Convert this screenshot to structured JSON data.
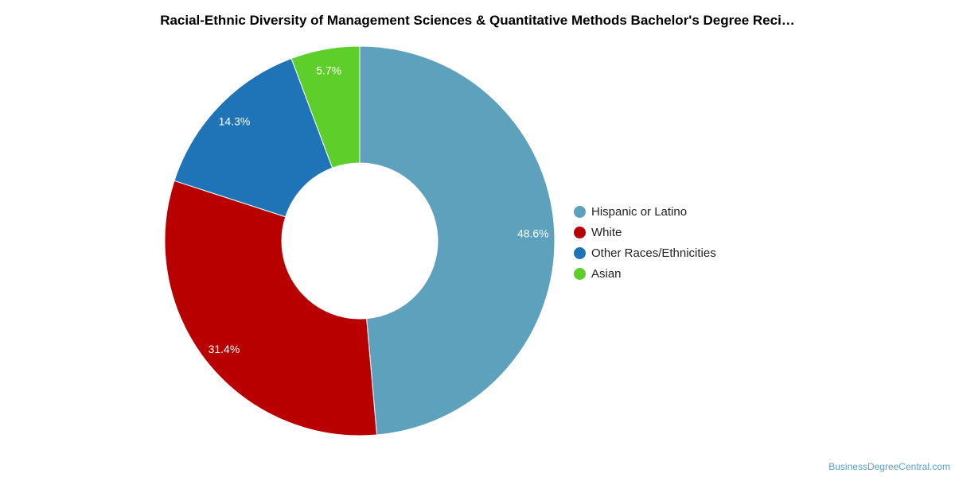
{
  "chart_data": {
    "type": "pie",
    "donut": true,
    "title": "Racial-Ethnic Diversity of Management Sciences & Quantitative Methods Bachelor's Degree Reci…",
    "slices": [
      {
        "label": "Hispanic or Latino",
        "value": 48.6,
        "value_label": "48.6%",
        "color": "#5da1bd"
      },
      {
        "label": "White",
        "value": 31.4,
        "value_label": "31.4%",
        "color": "#b90000"
      },
      {
        "label": "Other Races/Ethnicities",
        "value": 14.3,
        "value_label": "14.3%",
        "color": "#1f74b8"
      },
      {
        "label": "Asian",
        "value": 5.7,
        "value_label": "5.7%",
        "color": "#5ece2a"
      }
    ],
    "legend_position": "right"
  },
  "watermark": "BusinessDegreeCentral.com"
}
